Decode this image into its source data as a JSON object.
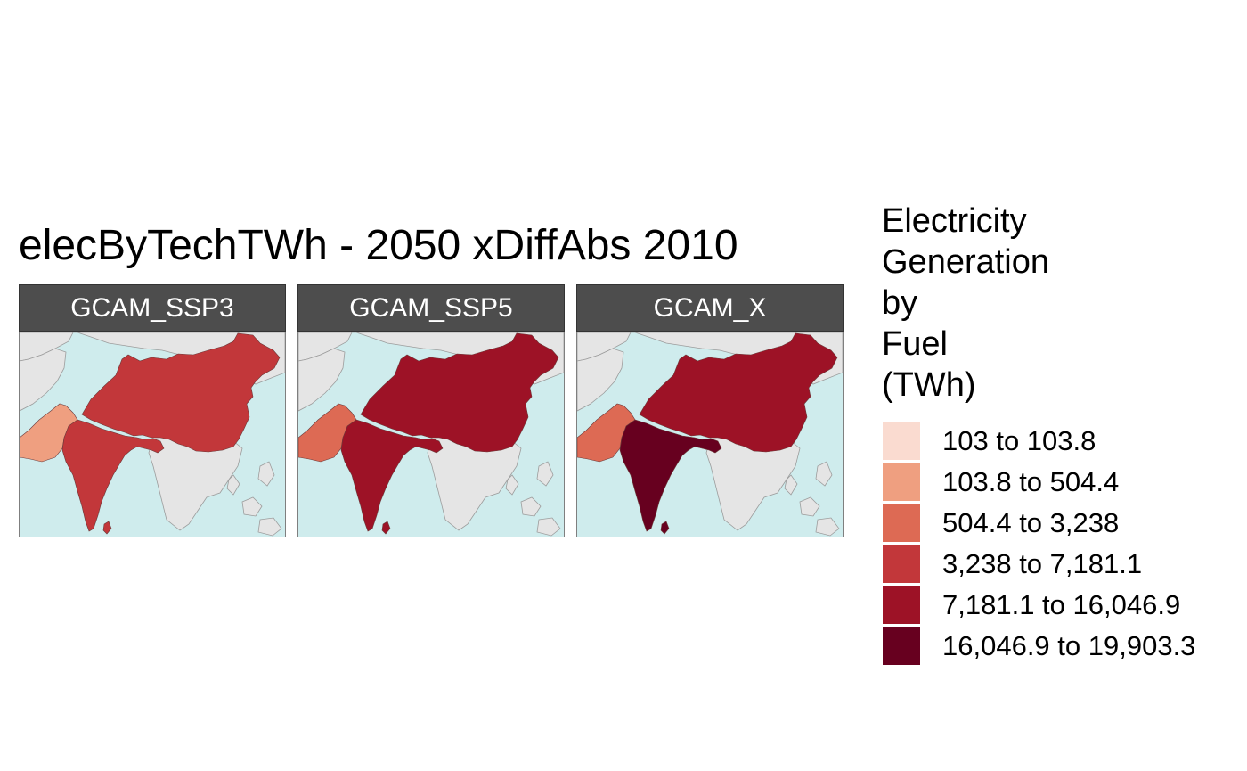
{
  "title": "elecByTechTWh - 2050 xDiffAbs 2010",
  "legend": {
    "title_lines": [
      "Electricity",
      "Generation",
      "by",
      "Fuel",
      "(TWh)"
    ],
    "classes": [
      {
        "label": "103 to 103.8",
        "color": "#fadbd0"
      },
      {
        "label": "103.8 to 504.4",
        "color": "#ef9f80"
      },
      {
        "label": "504.4 to 3,238",
        "color": "#dd6a54"
      },
      {
        "label": "3,238 to 7,181.1",
        "color": "#c2373a"
      },
      {
        "label": "7,181.1 to 16,046.9",
        "color": "#9d1226"
      },
      {
        "label": "16,046.9 to 19,903.3",
        "color": "#67001f"
      }
    ]
  },
  "map_colors": {
    "water": "#cfeced",
    "land": "#e5e5e5",
    "border": "#9c9c9c"
  },
  "panels": [
    {
      "label": "GCAM_SSP3",
      "china_class": 3,
      "india_class": 3,
      "pakistan_class": 1
    },
    {
      "label": "GCAM_SSP5",
      "china_class": 4,
      "india_class": 4,
      "pakistan_class": 2
    },
    {
      "label": "GCAM_X",
      "china_class": 4,
      "india_class": 5,
      "pakistan_class": 2
    }
  ]
}
